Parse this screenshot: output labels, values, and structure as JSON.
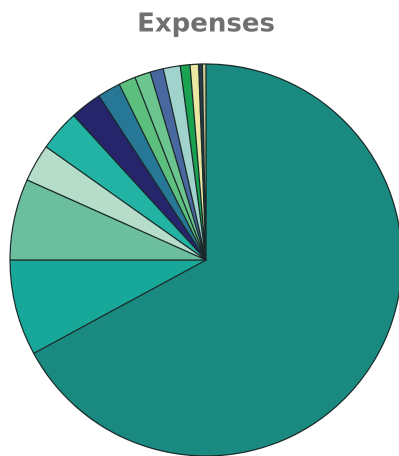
{
  "chart_data": {
    "type": "pie",
    "title": "Expenses",
    "values": [
      67.1,
      7.9,
      6.7,
      3.1,
      3.4,
      2.6,
      1.9,
      1.4,
      1.3,
      1.1,
      1.4,
      0.8,
      0.7,
      0.3,
      0.3
    ],
    "colors": [
      "#1a8a80",
      "#17a89a",
      "#6cbf9e",
      "#b5ddc9",
      "#22b3a4",
      "#26246a",
      "#277896",
      "#5dbf7e",
      "#6cc48f",
      "#4a68a0",
      "#9fd3cc",
      "#19a24f",
      "#e9e7a2",
      "#2b3a4a",
      "#c8c890"
    ],
    "start_angle": 0,
    "direction": "clockwise"
  }
}
